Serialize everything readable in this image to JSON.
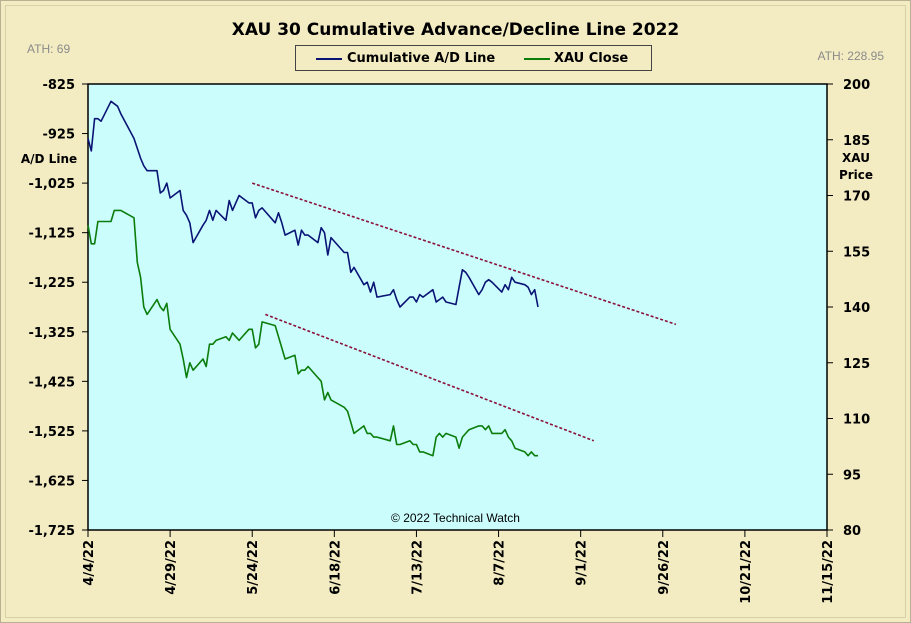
{
  "chart_data": {
    "type": "line",
    "title": "XAU 30 Cumulative  Advance/Decline  Line  2022",
    "ath_left": "ATH: 69",
    "ath_right": "ATH: 228.95",
    "copyright": "© 2022 Technical Watch",
    "left_axis": {
      "label_line1": "A/D Line",
      "ylim": [
        -1725,
        -825
      ],
      "ticks": [
        "-825",
        "-925",
        "-1,025",
        "-1,125",
        "-1,225",
        "-1,325",
        "-1,425",
        "-1,525",
        "-1,625",
        "-1,725"
      ]
    },
    "right_axis": {
      "label_line1": "XAU",
      "label_line2": "Price",
      "ylim": [
        80,
        200
      ],
      "ticks": [
        "200",
        "185",
        "170",
        "155",
        "140",
        "125",
        "110",
        "95",
        "80"
      ]
    },
    "x_axis": {
      "labels": [
        "4/4/22",
        "4/29/22",
        "5/24/22",
        "6/18/22",
        "7/13/22",
        "8/7/22",
        "9/1/22",
        "9/26/22",
        "10/21/22",
        "11/15/22"
      ]
    },
    "grid": false,
    "legend_position": "top-center",
    "colors": {
      "plot_bg": "#ccfdfd",
      "ad_line": "#0a1475",
      "xau_line": "#0b7d0b",
      "trend": "#8b1038"
    },
    "series": [
      {
        "name": "Cumulative A/D Line",
        "axis": "left",
        "x": [
          "2022-04-04",
          "2022-04-05",
          "2022-04-06",
          "2022-04-07",
          "2022-04-08",
          "2022-04-11",
          "2022-04-12",
          "2022-04-13",
          "2022-04-14",
          "2022-04-18",
          "2022-04-19",
          "2022-04-20",
          "2022-04-21",
          "2022-04-22",
          "2022-04-25",
          "2022-04-26",
          "2022-04-27",
          "2022-04-28",
          "2022-04-29",
          "2022-05-02",
          "2022-05-03",
          "2022-05-04",
          "2022-05-05",
          "2022-05-06",
          "2022-05-09",
          "2022-05-10",
          "2022-05-11",
          "2022-05-12",
          "2022-05-13",
          "2022-05-16",
          "2022-05-17",
          "2022-05-18",
          "2022-05-19",
          "2022-05-20",
          "2022-05-23",
          "2022-05-24",
          "2022-05-25",
          "2022-05-26",
          "2022-05-27",
          "2022-05-31",
          "2022-06-01",
          "2022-06-02",
          "2022-06-03",
          "2022-06-06",
          "2022-06-07",
          "2022-06-08",
          "2022-06-09",
          "2022-06-10",
          "2022-06-13",
          "2022-06-14",
          "2022-06-15",
          "2022-06-16",
          "2022-06-17",
          "2022-06-21",
          "2022-06-22",
          "2022-06-23",
          "2022-06-24",
          "2022-06-27",
          "2022-06-28",
          "2022-06-29",
          "2022-06-30",
          "2022-07-01",
          "2022-07-05",
          "2022-07-06",
          "2022-07-07",
          "2022-07-08",
          "2022-07-11",
          "2022-07-12",
          "2022-07-13",
          "2022-07-14",
          "2022-07-15",
          "2022-07-18",
          "2022-07-19",
          "2022-07-20",
          "2022-07-21",
          "2022-07-22",
          "2022-07-25",
          "2022-07-26",
          "2022-07-27",
          "2022-07-28",
          "2022-07-29",
          "2022-08-01",
          "2022-08-02",
          "2022-08-03",
          "2022-08-04",
          "2022-08-05",
          "2022-08-08",
          "2022-08-09",
          "2022-08-10",
          "2022-08-11",
          "2022-08-12",
          "2022-08-15",
          "2022-08-16",
          "2022-08-17",
          "2022-08-18",
          "2022-08-19"
        ],
        "values": [
          -935,
          -960,
          -895,
          -895,
          -900,
          -860,
          -865,
          -870,
          -885,
          -935,
          -955,
          -975,
          -990,
          -1000,
          -1000,
          -1045,
          -1040,
          -1025,
          -1055,
          -1040,
          -1080,
          -1090,
          -1105,
          -1145,
          -1110,
          -1100,
          -1080,
          -1100,
          -1080,
          -1100,
          -1060,
          -1080,
          -1065,
          -1050,
          -1065,
          -1065,
          -1095,
          -1080,
          -1075,
          -1105,
          -1085,
          -1105,
          -1130,
          -1120,
          -1150,
          -1120,
          -1130,
          -1130,
          -1145,
          -1115,
          -1125,
          -1170,
          -1135,
          -1165,
          -1165,
          -1205,
          -1195,
          -1230,
          -1225,
          -1245,
          -1225,
          -1255,
          -1250,
          -1240,
          -1260,
          -1275,
          -1255,
          -1255,
          -1265,
          -1250,
          -1255,
          -1240,
          -1265,
          -1260,
          -1255,
          -1265,
          -1270,
          -1235,
          -1200,
          -1205,
          -1215,
          -1250,
          -1240,
          -1225,
          -1220,
          -1225,
          -1245,
          -1230,
          -1240,
          -1215,
          -1225,
          -1230,
          -1235,
          -1250,
          -1240,
          -1275
        ]
      },
      {
        "name": "XAU Close",
        "axis": "right",
        "x": [
          "2022-04-04",
          "2022-04-05",
          "2022-04-06",
          "2022-04-07",
          "2022-04-08",
          "2022-04-11",
          "2022-04-12",
          "2022-04-13",
          "2022-04-14",
          "2022-04-18",
          "2022-04-19",
          "2022-04-20",
          "2022-04-21",
          "2022-04-22",
          "2022-04-25",
          "2022-04-26",
          "2022-04-27",
          "2022-04-28",
          "2022-04-29",
          "2022-05-02",
          "2022-05-03",
          "2022-05-04",
          "2022-05-05",
          "2022-05-06",
          "2022-05-09",
          "2022-05-10",
          "2022-05-11",
          "2022-05-12",
          "2022-05-13",
          "2022-05-16",
          "2022-05-17",
          "2022-05-18",
          "2022-05-19",
          "2022-05-20",
          "2022-05-23",
          "2022-05-24",
          "2022-05-25",
          "2022-05-26",
          "2022-05-27",
          "2022-05-31",
          "2022-06-01",
          "2022-06-02",
          "2022-06-03",
          "2022-06-06",
          "2022-06-07",
          "2022-06-08",
          "2022-06-09",
          "2022-06-10",
          "2022-06-13",
          "2022-06-14",
          "2022-06-15",
          "2022-06-16",
          "2022-06-17",
          "2022-06-21",
          "2022-06-22",
          "2022-06-23",
          "2022-06-24",
          "2022-06-27",
          "2022-06-28",
          "2022-06-29",
          "2022-06-30",
          "2022-07-01",
          "2022-07-05",
          "2022-07-06",
          "2022-07-07",
          "2022-07-08",
          "2022-07-11",
          "2022-07-12",
          "2022-07-13",
          "2022-07-14",
          "2022-07-15",
          "2022-07-18",
          "2022-07-19",
          "2022-07-20",
          "2022-07-21",
          "2022-07-22",
          "2022-07-25",
          "2022-07-26",
          "2022-07-27",
          "2022-07-28",
          "2022-07-29",
          "2022-08-01",
          "2022-08-02",
          "2022-08-03",
          "2022-08-04",
          "2022-08-05",
          "2022-08-08",
          "2022-08-09",
          "2022-08-10",
          "2022-08-11",
          "2022-08-12",
          "2022-08-15",
          "2022-08-16",
          "2022-08-17",
          "2022-08-18",
          "2022-08-19"
        ],
        "values": [
          162,
          157,
          157,
          163,
          163,
          163,
          166,
          166,
          166,
          164,
          152,
          148,
          140,
          138,
          142,
          140,
          139,
          141,
          134,
          130,
          126,
          121,
          125,
          123,
          126,
          124,
          130,
          130,
          131,
          132,
          131,
          133,
          132,
          131,
          134,
          134,
          129,
          130,
          136,
          135,
          132,
          129,
          126,
          127,
          122,
          123,
          123,
          124,
          121,
          120,
          115,
          117,
          115,
          113,
          112,
          109,
          106,
          108,
          106,
          106,
          105,
          105,
          104,
          108,
          103,
          103,
          104,
          103,
          103,
          101,
          101,
          100,
          105,
          106,
          105,
          106,
          105,
          102,
          105,
          106,
          107,
          108,
          108,
          107,
          108,
          106,
          106,
          107,
          105,
          104,
          102,
          101,
          100,
          101,
          100,
          100
        ]
      }
    ],
    "trendlines": [
      {
        "axis": "left",
        "x": [
          "2022-05-24",
          "2022-09-30"
        ],
        "y": [
          -1025,
          -1310
        ]
      },
      {
        "axis": "right",
        "x": [
          "2022-05-28",
          "2022-09-05"
        ],
        "y": [
          138,
          104
        ]
      }
    ]
  }
}
